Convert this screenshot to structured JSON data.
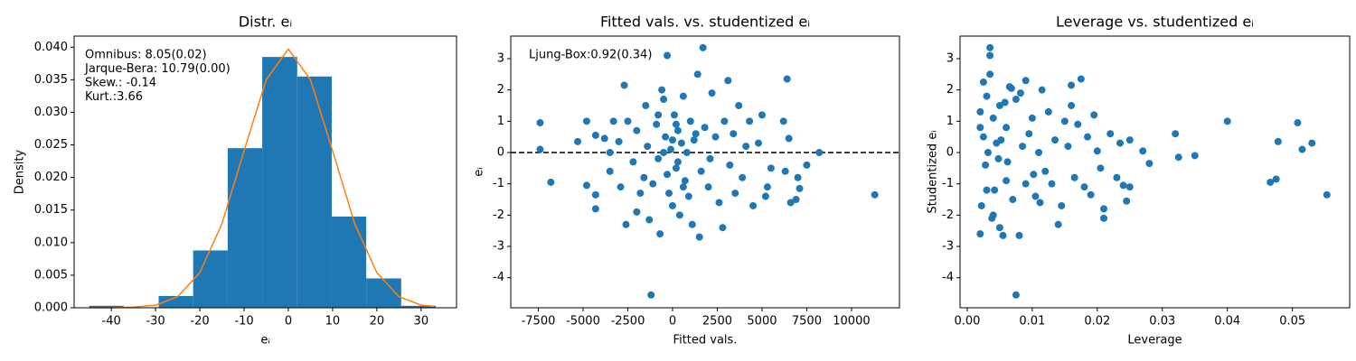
{
  "chart_data": [
    {
      "type": "histogram",
      "title": "Distr. eᵢ",
      "xlabel": "eᵢ",
      "ylabel": "Density",
      "bins": [
        -45,
        -37.2,
        -29.3,
        -21.5,
        -13.7,
        -5.9,
        2.0,
        9.8,
        17.6,
        25.5,
        33.3
      ],
      "values": [
        0.0003,
        0,
        0.0018,
        0.0088,
        0.0245,
        0.0385,
        0.0355,
        0.014,
        0.0045,
        0.0003
      ],
      "color": "#1f77b4",
      "curve": {
        "color": "#ff7f0e",
        "x": [
          -45,
          -40,
          -35,
          -30,
          -25,
          -20,
          -15,
          -10,
          -5,
          0,
          5,
          10,
          15,
          20,
          25,
          30,
          33
        ],
        "y": [
          0.0,
          0.0,
          0.0001,
          0.0004,
          0.0017,
          0.0054,
          0.0129,
          0.0241,
          0.035,
          0.0397,
          0.035,
          0.0241,
          0.0129,
          0.0054,
          0.0017,
          0.0004,
          0.0002
        ]
      },
      "annotations": [
        "Omnibus: 8.05(0.02)",
        "Jarque-Bera: 10.79(0.00)",
        "Skew.: -0.14",
        "Kurt.:3.66"
      ],
      "xlim": [
        -48.4,
        38
      ],
      "ylim": [
        0,
        0.0417
      ],
      "xticks": [
        -40,
        -30,
        -20,
        -10,
        0,
        10,
        20,
        30
      ],
      "yticks": [
        {
          "value": 0,
          "label": "0.000"
        },
        {
          "value": 0.005,
          "label": "0.005"
        },
        {
          "value": 0.01,
          "label": "0.010"
        },
        {
          "value": 0.015,
          "label": "0.015"
        },
        {
          "value": 0.02,
          "label": "0.020"
        },
        {
          "value": 0.025,
          "label": "0.025"
        },
        {
          "value": 0.03,
          "label": "0.030"
        },
        {
          "value": 0.035,
          "label": "0.035"
        },
        {
          "value": 0.04,
          "label": "0.040"
        }
      ]
    },
    {
      "type": "scatter",
      "title": "Fitted vals. vs. studentized eᵢ",
      "xlabel": "Fitted vals.",
      "ylabel": "eᵢ",
      "color": "#1f77b4",
      "hline": 0,
      "annotations": [
        "Ljung-Box:0.92(0.34)"
      ],
      "x": [
        -7400,
        -7400,
        -6800,
        -5300,
        -4800,
        -4800,
        -4300,
        -4300,
        -4300,
        -3800,
        -3500,
        -3500,
        -3300,
        -3000,
        -2900,
        -2700,
        -2600,
        -2500,
        -2200,
        -2000,
        -2000,
        -1800,
        -1600,
        -1500,
        -1400,
        -1300,
        -1200,
        -1100,
        -900,
        -800,
        -700,
        -600,
        -500,
        -400,
        -300,
        -200,
        -100,
        0,
        100,
        200,
        300,
        400,
        500,
        600,
        700,
        800,
        900,
        1000,
        1100,
        1200,
        1400,
        1500,
        1600,
        1700,
        1800,
        2000,
        2100,
        2200,
        2400,
        2600,
        2800,
        2900,
        3100,
        3200,
        3400,
        3500,
        3700,
        3900,
        4100,
        4300,
        4500,
        4800,
        5000,
        5200,
        5300,
        5500,
        6200,
        6300,
        6400,
        6500,
        6600,
        6900,
        7000,
        7100,
        7500,
        8200,
        11300,
        -500,
        0,
        300,
        600,
        -800,
        1300,
        200,
        -300
      ],
      "y": [
        0.95,
        0.1,
        -0.95,
        0.35,
        1.0,
        -1.05,
        -1.35,
        -1.8,
        0.55,
        0.45,
        -0.6,
        0.0,
        1.0,
        0.35,
        -1.1,
        2.15,
        -2.3,
        1.0,
        -0.3,
        -1.9,
        0.7,
        -1.3,
        -0.8,
        1.5,
        0.2,
        -2.15,
        -4.55,
        -1.0,
        0.9,
        -0.2,
        -2.6,
        2.0,
        1.7,
        0.5,
        3.1,
        -1.3,
        0.1,
        -1.7,
        1.2,
        -0.5,
        0.7,
        -2.0,
        0.3,
        1.8,
        -0.9,
        0.0,
        -1.4,
        1.0,
        -2.3,
        0.4,
        2.5,
        -2.7,
        -0.6,
        3.35,
        0.8,
        -1.1,
        -0.2,
        1.9,
        0.5,
        -1.6,
        -2.4,
        1.0,
        2.3,
        -0.4,
        0.6,
        -1.3,
        1.5,
        -0.8,
        0.2,
        1.0,
        -1.7,
        0.3,
        1.2,
        -1.4,
        -1.1,
        -0.5,
        1.0,
        -0.6,
        2.35,
        0.45,
        -1.6,
        -1.5,
        -0.8,
        -1.15,
        -0.4,
        0.0,
        -1.35,
        0.0,
        0.4,
        -0.3,
        -1.1,
        1.2,
        0.6,
        0.9,
        -0.7
      ],
      "xlim": [
        -9040,
        12680
      ],
      "ylim": [
        -4.96,
        3.72
      ],
      "xticks": [
        -7500,
        -5000,
        -2500,
        0,
        2500,
        5000,
        7500,
        10000
      ],
      "yticks": [
        -4,
        -3,
        -2,
        -1,
        0,
        1,
        2,
        3
      ]
    },
    {
      "type": "scatter",
      "title": "Leverage vs. studentized eᵢ",
      "xlabel": "Leverage",
      "ylabel": "Studentized eᵢ",
      "color": "#1f77b4",
      "x": [
        0.0553,
        0.0508,
        0.0515,
        0.053,
        0.0478,
        0.0475,
        0.0466,
        0.04,
        0.035,
        0.032,
        0.0325,
        0.0075,
        0.0035,
        0.0035,
        0.028,
        0.027,
        0.025,
        0.025,
        0.024,
        0.0245,
        0.021,
        0.021,
        0.014,
        0.0175,
        0.016,
        0.002,
        0.002,
        0.0022,
        0.0025,
        0.0025,
        0.003,
        0.003,
        0.0032,
        0.0035,
        0.004,
        0.004,
        0.0045,
        0.005,
        0.005,
        0.0055,
        0.006,
        0.006,
        0.0065,
        0.007,
        0.0075,
        0.008,
        0.0085,
        0.009,
        0.009,
        0.0095,
        0.01,
        0.0105,
        0.011,
        0.0115,
        0.012,
        0.0125,
        0.013,
        0.0135,
        0.0145,
        0.015,
        0.0155,
        0.016,
        0.0165,
        0.017,
        0.018,
        0.0185,
        0.019,
        0.0195,
        0.02,
        0.0205,
        0.022,
        0.023,
        0.0235,
        0.002,
        0.0028,
        0.0042,
        0.0052,
        0.0062,
        0.0082,
        0.0102,
        0.0058,
        0.0038,
        0.0048,
        0.0068,
        0.0112
      ],
      "y": [
        -1.35,
        0.95,
        0.1,
        0.3,
        0.35,
        -0.85,
        -0.95,
        1.0,
        -0.1,
        0.6,
        -0.15,
        -4.55,
        3.35,
        3.1,
        -0.35,
        0.05,
        0.4,
        -1.1,
        -1.05,
        -1.55,
        -2.1,
        -1.8,
        -2.3,
        2.35,
        2.15,
        -2.6,
        1.3,
        -1.7,
        2.25,
        0.5,
        -1.2,
        1.8,
        0.0,
        2.5,
        -2.0,
        1.1,
        0.3,
        -2.4,
        1.5,
        -2.65,
        0.8,
        -0.9,
        2.1,
        -1.5,
        1.7,
        -2.65,
        0.2,
        2.3,
        -1.0,
        0.6,
        1.1,
        -1.4,
        0.0,
        2.0,
        -0.6,
        1.3,
        -1.0,
        0.4,
        -1.7,
        1.0,
        0.2,
        1.5,
        -0.8,
        0.9,
        -1.1,
        0.5,
        -1.35,
        1.2,
        0.05,
        -0.5,
        0.6,
        -0.8,
        0.3,
        0.8,
        -0.4,
        -1.2,
        0.4,
        -0.3,
        1.9,
        -0.7,
        1.6,
        -2.1,
        -0.2,
        2.05,
        -1.6
      ],
      "xlim": [
        -0.0011,
        0.0588
      ],
      "ylim": [
        -4.96,
        3.72
      ],
      "xticks": [
        {
          "value": 0,
          "label": "0.00"
        },
        {
          "value": 0.01,
          "label": "0.01"
        },
        {
          "value": 0.02,
          "label": "0.02"
        },
        {
          "value": 0.03,
          "label": "0.03"
        },
        {
          "value": 0.04,
          "label": "0.04"
        },
        {
          "value": 0.05,
          "label": "0.05"
        }
      ],
      "yticks": [
        -4,
        -3,
        -2,
        -1,
        0,
        1,
        2,
        3
      ]
    }
  ]
}
